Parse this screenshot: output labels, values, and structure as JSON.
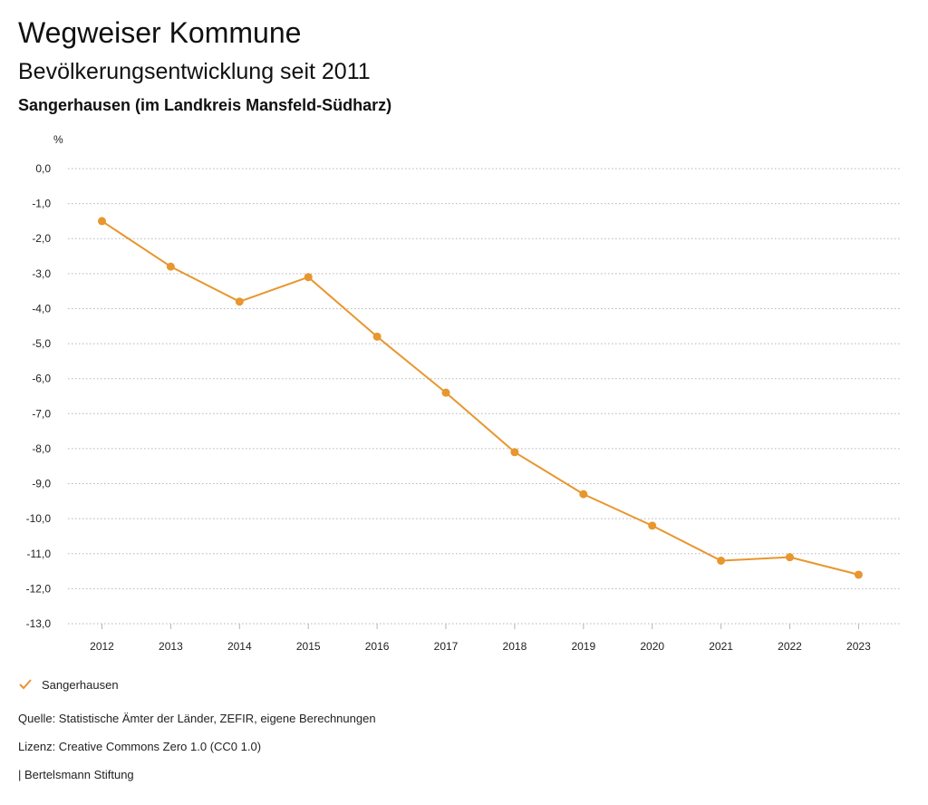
{
  "header": {
    "title": "Wegweiser Kommune",
    "subtitle": "Bevölkerungsentwicklung seit 2011",
    "region": "Sangerhausen (im Landkreis Mansfeld-Südharz)"
  },
  "chart_data": {
    "type": "line",
    "ylabel": "%",
    "ylim": [
      -13,
      0
    ],
    "y_ticks": [
      0,
      -1,
      -2,
      -3,
      -4,
      -5,
      -6,
      -7,
      -8,
      -9,
      -10,
      -11,
      -12,
      -13
    ],
    "y_tick_labels": [
      "0,0",
      "-1,0",
      "-2,0",
      "-3,0",
      "-4,0",
      "-5,0",
      "-6,0",
      "-7,0",
      "-8,0",
      "-9,0",
      "-10,0",
      "-11,0",
      "-12,0",
      "-13,0"
    ],
    "x": [
      "2012",
      "2013",
      "2014",
      "2015",
      "2016",
      "2017",
      "2018",
      "2019",
      "2020",
      "2021",
      "2022",
      "2023"
    ],
    "grid": true,
    "legend_position": "bottom-left",
    "series": [
      {
        "name": "Sangerhausen",
        "color": "#E8962E",
        "values": [
          -1.5,
          -2.8,
          -3.8,
          -3.1,
          -4.8,
          -6.4,
          -8.1,
          -9.3,
          -10.2,
          -11.2,
          -11.1,
          -11.6
        ]
      }
    ]
  },
  "footer": {
    "source": "Quelle: Statistische Ämter der Länder, ZEFIR, eigene Berechnungen",
    "license": "Lizenz: Creative Commons Zero 1.0 (CC0 1.0)",
    "publisher": "| Bertelsmann Stiftung"
  }
}
